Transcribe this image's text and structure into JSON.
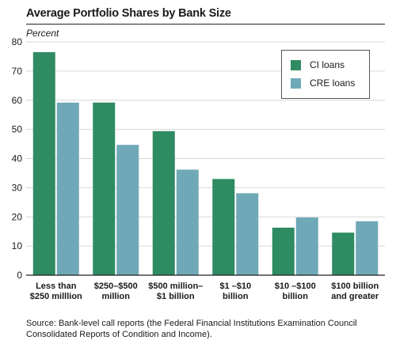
{
  "chart_data": {
    "type": "bar",
    "title": "Average Portfolio Shares by Bank Size",
    "ylabel": "Percent",
    "xlabel": "",
    "ylim": [
      0,
      80
    ],
    "yticks": [
      0,
      10,
      20,
      30,
      40,
      50,
      60,
      70,
      80
    ],
    "grid": true,
    "legend_position": "top-right",
    "categories": [
      [
        "Less than",
        "$250 milllion"
      ],
      [
        "$250–$500",
        "million"
      ],
      [
        "$500 million–",
        "$1 billion"
      ],
      [
        "$1 –$10",
        "billion"
      ],
      [
        "$10 –$100",
        "billion"
      ],
      [
        "$100 billion",
        "and greater"
      ]
    ],
    "series": [
      {
        "name": "CI loans",
        "color": "#2e8b62",
        "values": [
          76.5,
          59.2,
          49.4,
          33.0,
          16.3,
          14.6
        ]
      },
      {
        "name": "CRE loans",
        "color": "#6fa9b7",
        "values": [
          59.2,
          44.7,
          36.2,
          28.1,
          19.8,
          18.5
        ]
      }
    ]
  },
  "source": "Source: Bank-level call reports (the Federal Financial Institutions Examination Council Consolidated Reports of Condition and Income)."
}
